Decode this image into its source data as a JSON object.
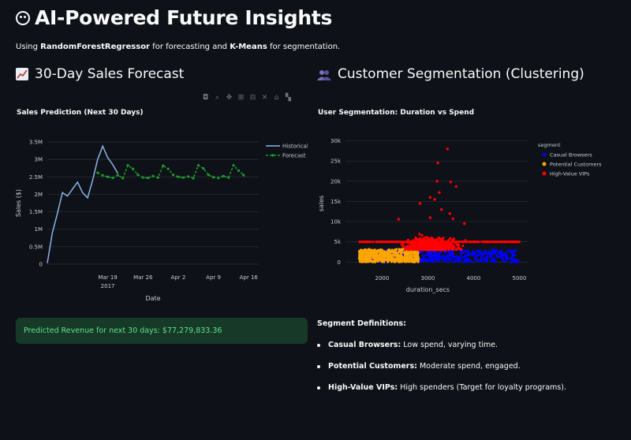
{
  "page": {
    "title": "AI-Powered Future Insights",
    "title_icon": "smiley-face-icon",
    "subtitle": {
      "prefix": "Using ",
      "model1": "RandomForestRegressor",
      "middle": " for forecasting and ",
      "model2": "K-Means",
      "suffix": " for segmentation."
    }
  },
  "forecast_section": {
    "heading": "30-Day Sales Forecast",
    "icon": "chart-increasing-icon",
    "modebar_icons": [
      "camera-icon",
      "zoom-icon",
      "pan-icon",
      "zoom-in-icon",
      "zoom-out-icon",
      "autoscale-icon",
      "home-icon",
      "plotly-logo-icon"
    ],
    "success_message": "Predicted Revenue for next 30 days: $77,279,833.36"
  },
  "segmentation_section": {
    "heading": "Customer Segmentation (Clustering)",
    "icon": "people-icon",
    "definitions_title": "Segment Definitions:",
    "definitions": [
      {
        "term": "Casual Browsers:",
        "desc": " Low spend, varying time."
      },
      {
        "term": "Potential Customers:",
        "desc": " Moderate spend, engaged."
      },
      {
        "term": "High-Value VIPs:",
        "desc": " High spenders (Target for loyalty programs)."
      }
    ]
  },
  "chart_data": [
    {
      "type": "line",
      "title": "Sales Prediction (Next 30 Days)",
      "xlabel": "Date",
      "ylabel": "Sales ($)",
      "ylim": [
        0,
        3500000
      ],
      "yticks": [
        {
          "v": 0,
          "label": "0"
        },
        {
          "v": 500000,
          "label": "0.5M"
        },
        {
          "v": 1000000,
          "label": "1M"
        },
        {
          "v": 1500000,
          "label": "1.5M"
        },
        {
          "v": 2000000,
          "label": "2M"
        },
        {
          "v": 2500000,
          "label": "2.5M"
        },
        {
          "v": 3000000,
          "label": "3M"
        },
        {
          "v": 3500000,
          "label": "3.5M"
        }
      ],
      "xlim": [
        0,
        42
      ],
      "xticks": [
        {
          "v": 12,
          "label": "Mar 19",
          "sub": "2017"
        },
        {
          "v": 19,
          "label": "Mar 26"
        },
        {
          "v": 26,
          "label": "Apr 2"
        },
        {
          "v": 33,
          "label": "Apr 9"
        },
        {
          "v": 40,
          "label": "Apr 16"
        }
      ],
      "legend_position": "top-right",
      "series": [
        {
          "name": "Historical",
          "color": "#8ab4e8",
          "x": [
            0,
            1,
            2,
            3,
            4,
            5,
            6,
            7,
            8,
            9,
            10,
            11,
            12,
            13,
            14
          ],
          "y": [
            30000,
            900000,
            1450000,
            2050000,
            1950000,
            2150000,
            2350000,
            2050000,
            1900000,
            2400000,
            3000000,
            3380000,
            3050000,
            2850000,
            2600000
          ]
        },
        {
          "name": "Forecast",
          "color": "#1e9b2c",
          "x": [
            10,
            11,
            12,
            13,
            14,
            15,
            16,
            17,
            18,
            19,
            20,
            21,
            22,
            23,
            24,
            25,
            26,
            27,
            28,
            29,
            30,
            31,
            32,
            33,
            34,
            35,
            36,
            37,
            38,
            39
          ],
          "y": [
            2620000,
            2540000,
            2500000,
            2470000,
            2550000,
            2460000,
            2830000,
            2730000,
            2560000,
            2480000,
            2470000,
            2520000,
            2480000,
            2820000,
            2730000,
            2560000,
            2500000,
            2480000,
            2510000,
            2460000,
            2830000,
            2740000,
            2560000,
            2490000,
            2470000,
            2520000,
            2480000,
            2830000,
            2680000,
            2550000
          ]
        }
      ]
    },
    {
      "type": "scatter",
      "title": "User Segmentation: Duration vs Spend",
      "xlabel": "duration_secs",
      "ylabel": "sales",
      "xlim": [
        1200,
        5200
      ],
      "ylim": [
        -1500,
        30500
      ],
      "xticks": [
        2000,
        3000,
        4000,
        5000
      ],
      "yticks": [
        {
          "v": 0,
          "label": "0"
        },
        {
          "v": 5000,
          "label": "5k"
        },
        {
          "v": 10000,
          "label": "10k"
        },
        {
          "v": 15000,
          "label": "15k"
        },
        {
          "v": 20000,
          "label": "20k"
        },
        {
          "v": 25000,
          "label": "25k"
        },
        {
          "v": 30000,
          "label": "30k"
        }
      ],
      "legend_title": "segment",
      "legend_position": "top-right",
      "series": [
        {
          "name": "Casual Browsers",
          "color": "#0000ff",
          "duration_range": [
            1500,
            5000
          ],
          "sales_range": [
            0,
            3000
          ]
        },
        {
          "name": "Potential Customers",
          "color": "#ffa500",
          "duration_range": [
            1500,
            2800
          ],
          "sales_range": [
            0,
            3200
          ]
        },
        {
          "name": "High-Value VIPs",
          "color": "#ff0000",
          "duration_range": [
            1500,
            5000
          ],
          "sales_range": [
            3000,
            28000
          ],
          "outliers": [
            [
              3430,
              28000
            ],
            [
              3220,
              24500
            ],
            [
              3200,
              20000
            ],
            [
              3500,
              19800
            ],
            [
              3250,
              17200
            ],
            [
              3620,
              18700
            ],
            [
              3050,
              16000
            ],
            [
              3150,
              15500
            ],
            [
              2830,
              14500
            ],
            [
              3480,
              12000
            ],
            [
              3300,
              13000
            ],
            [
              3050,
              11000
            ],
            [
              3550,
              10700
            ],
            [
              2360,
              10600
            ],
            [
              3800,
              9500
            ]
          ]
        }
      ]
    }
  ]
}
